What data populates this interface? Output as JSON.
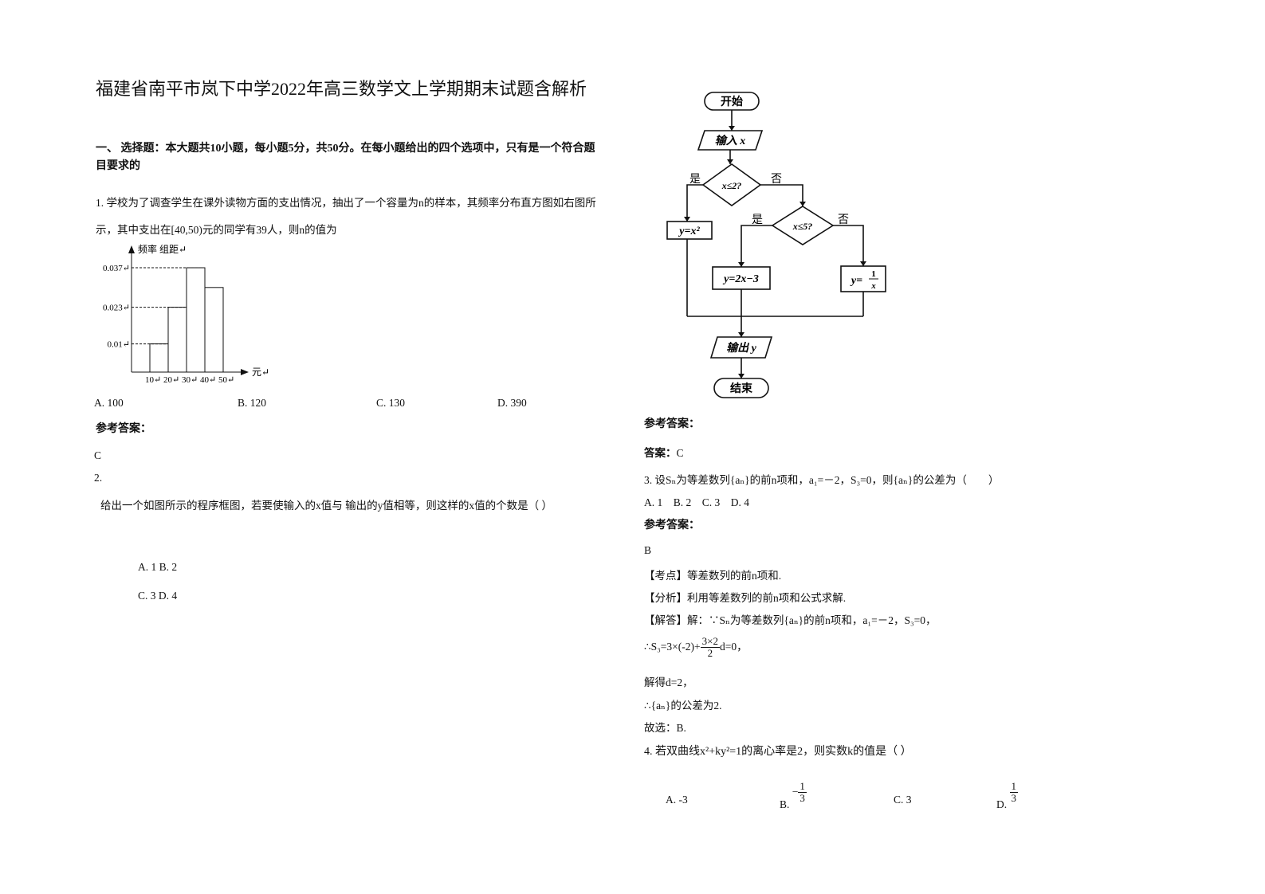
{
  "title": "福建省南平市岚下中学2022年高三数学文上学期期末试题含解析",
  "section": "一、 选择题：本大题共10小题，每小题5分，共50分。在每小题给出的四个选项中，只有是一个符合题目要求的",
  "q1": {
    "stem": "1. 学校为了调查学生在课外读物方面的支出情况，抽出了一个容量为n的样本，其频率分布直方图如右图所示，其中支出在[40,50)元的同学有39人，则n的值为",
    "histogram": {
      "y_axis_label": "频率 组距↵",
      "x_axis_label": "元↵",
      "bins": [
        {
          "value": 10,
          "label": "10↵"
        },
        {
          "value": 20,
          "label": "20↵"
        },
        {
          "value": 30,
          "label": "30↵"
        },
        {
          "value": 40,
          "label": "40↵"
        },
        {
          "value": 50,
          "label": "50↵"
        }
      ],
      "values": [
        0.01,
        0.023,
        0.037,
        0.03
      ],
      "yticks": [
        {
          "value": 0.01,
          "label": "0.01↵"
        },
        {
          "value": 0.023,
          "label": "0.023↵"
        },
        {
          "value": 0.037,
          "label": "0.037↵"
        }
      ]
    },
    "options": [
      "A. 100",
      "B. 120",
      "C. 130",
      "D. 390"
    ],
    "answer_label": "参考答案：",
    "answer": "C"
  },
  "q2": {
    "number": "2.",
    "stem": "给出一个如图所示的程序框图，若要使输入的x值与  输出的y值相等，则这样的x值的个数是（   ）",
    "options": [
      "A. 1 B. 2",
      "C. 3 D. 4"
    ],
    "answer_label": "参考答案：",
    "answer_key": "答案：",
    "answer": "C"
  },
  "flowchart": {
    "start": "开始",
    "input": "输入 x",
    "cond1": "x≤2?",
    "branch1": "y=x²",
    "cond2": "x≤5?",
    "branch2": "y=2x−3",
    "branch3": {
      "prefix": "y=",
      "num": "1",
      "den": "x"
    },
    "output": "输出 y",
    "end": "结束",
    "edge_labels": [
      "是",
      "否",
      "是",
      "否"
    ]
  },
  "q3": {
    "stem": "3. 设Sₙ为等差数列{aₙ}的前n项和，a₁=－2，S₃=0，则{aₙ}的公差为（　　）",
    "options": "A. 1　B. 2　C. 3　D. 4",
    "answer_label": "参考答案：",
    "answer": "B",
    "kaodian": "【考点】等差数列的前n项和.",
    "fenxi": "【分析】利用等差数列的前n项和公式求解.",
    "jieda": "【解答】解：∵Sₙ为等差数列{aₙ}的前n项和，a₁=－2，S₃=0，",
    "step": {
      "prefix": "∴",
      "lhs": "S₃=3×(-2)+",
      "num": "3×2",
      "den": "2",
      "rhs": "d=0，"
    },
    "result": "解得d=2，",
    "conclusion": "∴{aₙ}的公差为2.",
    "choice": "故选：B."
  },
  "q4": {
    "stem": "4. 若双曲线x²+ky²=1的离心率是2，则实数k的值是（ ）",
    "options": [
      "A. -3",
      {
        "label": "B.",
        "sign": "−",
        "num": "1",
        "den": "3"
      },
      "C. 3",
      {
        "label": "D.",
        "num": "1",
        "den": "3"
      }
    ]
  }
}
